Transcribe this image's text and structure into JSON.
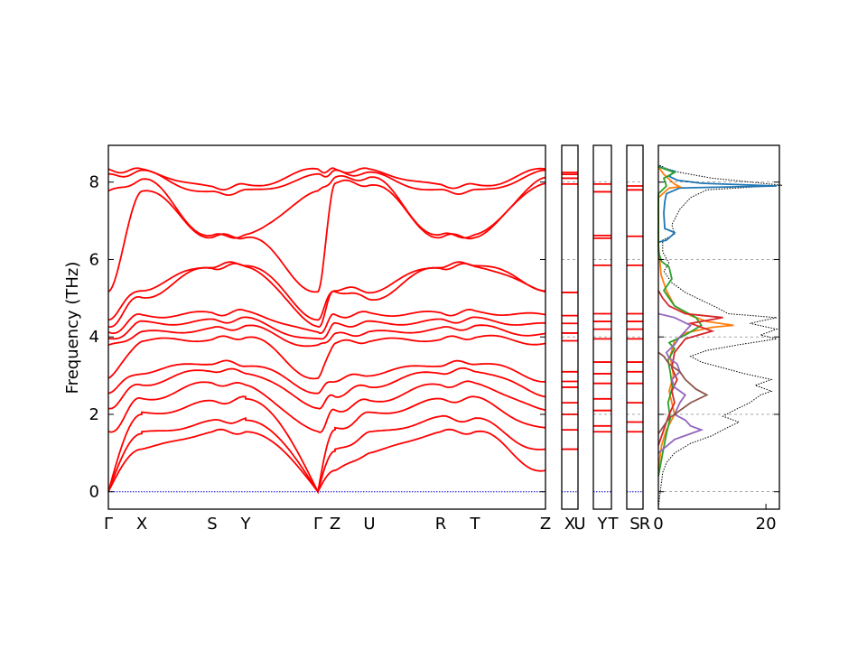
{
  "chart_data": {
    "type": "line",
    "ylabel": "Frequency (THz)",
    "ylim": [
      -0.45,
      8.95
    ],
    "yticks": [
      0,
      2,
      4,
      6,
      8
    ],
    "grid": false,
    "colors": {
      "bands": "#ff0000",
      "zero_line": "#0000cc",
      "dos_total": "#000000",
      "dos_series": [
        "#1f77b4",
        "#ff7f0e",
        "#2ca02c",
        "#d62728",
        "#9467bd",
        "#8c564b"
      ]
    },
    "band_panels": [
      {
        "segments": [
          {
            "from": "Γ",
            "to": "X",
            "length": 0.35
          },
          {
            "from": "X",
            "to": "S",
            "length": 0.72
          },
          {
            "from": "S",
            "to": "Y",
            "length": 0.35
          },
          {
            "from": "Y",
            "to": "Γ",
            "length": 0.72
          },
          {
            "from": "Γ",
            "to": "Z",
            "length": 0.17
          },
          {
            "from": "Z",
            "to": "U",
            "length": 0.35
          },
          {
            "from": "U",
            "to": "R",
            "length": 0.72
          },
          {
            "from": "R",
            "to": "T",
            "length": 0.35
          },
          {
            "from": "T",
            "to": "Z",
            "length": 0.72
          }
        ],
        "tick_labels": [
          "Γ",
          "X",
          "S",
          "Y",
          "Γ",
          "Z",
          "U",
          "R",
          "T",
          "Z"
        ],
        "high_symmetry_values": {
          "Γ": [
            0,
            0,
            0,
            1.55,
            2.2,
            2.6,
            2.95,
            3.75,
            3.9,
            4.1,
            4.3,
            4.5,
            5.2,
            7.75,
            8.15,
            8.3
          ],
          "X": [
            1.1,
            1.5,
            2.0,
            2.4,
            2.8,
            3.1,
            3.9,
            4.1,
            4.35,
            4.55,
            5.05,
            5.25,
            7.8,
            8.05,
            8.25,
            8.3
          ],
          "S": [
            1.55,
            1.8,
            2.3,
            2.8,
            3.15,
            3.35,
            3.95,
            4.2,
            4.4,
            4.6,
            5.8,
            5.85,
            6.6,
            6.6,
            7.7,
            7.85
          ],
          "Y": [
            1.55,
            1.85,
            2.4,
            2.75,
            3.1,
            3.3,
            4.0,
            4.25,
            4.45,
            4.65,
            5.85,
            5.9,
            6.6,
            6.62,
            7.75,
            7.9
          ],
          "Z": [
            0.55,
            1.05,
            1.6,
            2.1,
            2.5,
            2.9,
            3.85,
            4.05,
            4.3,
            4.55,
            5.2,
            5.25,
            8.0,
            8.1,
            8.25,
            8.3
          ],
          "U": [
            1.0,
            1.5,
            2.0,
            2.35,
            2.75,
            3.05,
            3.9,
            4.1,
            4.35,
            4.6,
            5.0,
            5.2,
            7.95,
            8.1,
            8.2,
            8.3
          ],
          "R": [
            1.55,
            1.9,
            2.35,
            2.75,
            3.1,
            3.3,
            3.95,
            4.2,
            4.4,
            4.6,
            5.8,
            5.85,
            6.6,
            6.62,
            7.75,
            7.9
          ],
          "T": [
            1.55,
            1.85,
            2.4,
            2.8,
            3.15,
            3.35,
            4.0,
            4.25,
            4.45,
            4.65,
            5.85,
            5.9,
            6.6,
            6.62,
            7.75,
            7.9
          ]
        }
      },
      {
        "tick_labels": [
          "Z",
          "X",
          "U"
        ],
        "frequencies": [
          1.1,
          1.6,
          2.0,
          2.3,
          2.7,
          2.85,
          3.1,
          3.9,
          4.1,
          4.35,
          4.55,
          5.15,
          7.95,
          8.1,
          8.2,
          8.25
        ]
      },
      {
        "tick_labels": [
          "U",
          "Y",
          "T"
        ],
        "frequencies": [
          1.55,
          1.7,
          2.1,
          2.4,
          2.8,
          3.05,
          3.35,
          3.95,
          4.2,
          4.4,
          4.6,
          5.85,
          6.55,
          6.62,
          7.75,
          7.95
        ]
      },
      {
        "tick_labels": [
          "T",
          "S",
          "R"
        ],
        "frequencies": [
          1.55,
          1.8,
          2.3,
          2.8,
          3.1,
          3.35,
          3.95,
          4.2,
          4.4,
          4.6,
          5.85,
          6.6,
          7.8,
          7.9
        ]
      }
    ],
    "dos_panel": {
      "xticks": [
        0,
        20
      ],
      "xlim": [
        0,
        22.5
      ],
      "total": [
        [
          0,
          -0.4
        ],
        [
          0.8,
          0.5
        ],
        [
          1.5,
          0.75
        ],
        [
          3,
          1.0
        ],
        [
          6,
          1.25
        ],
        [
          10,
          1.45
        ],
        [
          12,
          1.6
        ],
        [
          15,
          1.8
        ],
        [
          12,
          1.95
        ],
        [
          14,
          2.1
        ],
        [
          17,
          2.3
        ],
        [
          19,
          2.5
        ],
        [
          21,
          2.6
        ],
        [
          18,
          2.75
        ],
        [
          21,
          2.9
        ],
        [
          16,
          3.05
        ],
        [
          12,
          3.2
        ],
        [
          8,
          3.35
        ],
        [
          6,
          3.5
        ],
        [
          9,
          3.65
        ],
        [
          15,
          3.8
        ],
        [
          22,
          3.95
        ],
        [
          19,
          4.05
        ],
        [
          22,
          4.2
        ],
        [
          17,
          4.35
        ],
        [
          22,
          4.5
        ],
        [
          13,
          4.6
        ],
        [
          11,
          4.75
        ],
        [
          8,
          4.95
        ],
        [
          5,
          5.15
        ],
        [
          2.5,
          5.4
        ],
        [
          1,
          5.7
        ],
        [
          2,
          5.9
        ],
        [
          0.8,
          6.2
        ],
        [
          0.8,
          6.5
        ],
        [
          3,
          6.65
        ],
        [
          2.5,
          6.9
        ],
        [
          4,
          7.3
        ],
        [
          6,
          7.6
        ],
        [
          9,
          7.8
        ],
        [
          23,
          7.92
        ],
        [
          10,
          8.1
        ],
        [
          4,
          8.25
        ],
        [
          1.5,
          8.35
        ],
        [
          0,
          8.45
        ]
      ],
      "series": [
        {
          "values": [
            [
              0,
              6.45
            ],
            [
              1.5,
              6.5
            ],
            [
              2.5,
              6.62
            ],
            [
              3,
              6.7
            ],
            [
              1.2,
              6.8
            ],
            [
              1,
              7.2
            ],
            [
              1.2,
              7.5
            ],
            [
              1.5,
              7.7
            ],
            [
              4,
              7.85
            ],
            [
              22,
              7.9
            ],
            [
              8,
              7.97
            ],
            [
              3.5,
              8.05
            ],
            [
              2,
              8.15
            ],
            [
              3,
              8.28
            ],
            [
              1,
              8.35
            ],
            [
              0,
              8.42
            ]
          ]
        },
        {
          "values": [
            [
              0,
              0.6
            ],
            [
              0.6,
              1.2
            ],
            [
              1.5,
              1.6
            ],
            [
              3,
              2.0
            ],
            [
              2.5,
              2.3
            ],
            [
              2,
              2.6
            ],
            [
              2.8,
              3.0
            ],
            [
              2.2,
              3.5
            ],
            [
              3,
              3.9
            ],
            [
              5,
              4.1
            ],
            [
              10,
              4.25
            ],
            [
              14,
              4.3
            ],
            [
              9,
              4.4
            ],
            [
              6,
              4.55
            ],
            [
              3,
              4.8
            ],
            [
              1.5,
              5.2
            ],
            [
              0.5,
              5.6
            ],
            [
              0,
              6.4
            ],
            [
              0,
              7.6
            ],
            [
              2,
              7.85
            ],
            [
              4,
              7.88
            ],
            [
              3,
              7.95
            ],
            [
              1,
              8.2
            ],
            [
              0,
              8.4
            ]
          ]
        },
        {
          "values": [
            [
              0,
              0.4
            ],
            [
              0.8,
              1.0
            ],
            [
              1.5,
              1.5
            ],
            [
              2.2,
              1.9
            ],
            [
              1.8,
              2.3
            ],
            [
              2.6,
              2.7
            ],
            [
              2.2,
              3.1
            ],
            [
              1.8,
              3.4
            ],
            [
              3,
              3.7
            ],
            [
              2,
              3.85
            ],
            [
              5,
              4.05
            ],
            [
              8,
              4.3
            ],
            [
              7,
              4.5
            ],
            [
              3,
              4.8
            ],
            [
              2,
              5.0
            ],
            [
              1,
              5.2
            ],
            [
              2.5,
              5.5
            ],
            [
              2,
              5.8
            ],
            [
              0.6,
              5.95
            ],
            [
              0,
              6.2
            ],
            [
              0,
              7.7
            ],
            [
              1.5,
              7.9
            ],
            [
              1,
              8.1
            ],
            [
              3,
              8.25
            ],
            [
              0,
              8.4
            ]
          ]
        },
        {
          "values": [
            [
              0,
              1.2
            ],
            [
              1,
              1.6
            ],
            [
              2,
              2.0
            ],
            [
              3,
              2.3
            ],
            [
              2.5,
              2.6
            ],
            [
              3.5,
              2.9
            ],
            [
              2.5,
              3.2
            ],
            [
              3,
              3.6
            ],
            [
              5,
              3.95
            ],
            [
              10,
              4.15
            ],
            [
              6,
              4.35
            ],
            [
              12,
              4.5
            ],
            [
              5,
              4.6
            ],
            [
              2,
              4.8
            ],
            [
              0.8,
              5.0
            ],
            [
              0,
              5.2
            ]
          ]
        },
        {
          "values": [
            [
              0,
              1.0
            ],
            [
              3,
              1.35
            ],
            [
              8,
              1.6
            ],
            [
              6,
              1.7
            ],
            [
              5,
              1.85
            ],
            [
              3,
              2.0
            ],
            [
              4,
              2.3
            ],
            [
              5,
              2.5
            ],
            [
              3,
              2.7
            ],
            [
              2.5,
              2.9
            ],
            [
              4,
              3.1
            ],
            [
              3.5,
              3.3
            ],
            [
              2,
              3.45
            ],
            [
              1.5,
              3.6
            ],
            [
              3,
              3.8
            ],
            [
              4,
              4.0
            ],
            [
              6,
              4.3
            ],
            [
              3,
              4.5
            ],
            [
              0,
              4.6
            ]
          ]
        },
        {
          "values": [
            [
              0,
              1.5
            ],
            [
              2,
              1.9
            ],
            [
              4,
              2.1
            ],
            [
              6,
              2.3
            ],
            [
              9,
              2.5
            ],
            [
              7,
              2.65
            ],
            [
              5,
              2.9
            ],
            [
              4,
              3.1
            ],
            [
              2,
              3.3
            ],
            [
              1,
              3.5
            ],
            [
              0,
              3.6
            ]
          ]
        }
      ]
    }
  }
}
